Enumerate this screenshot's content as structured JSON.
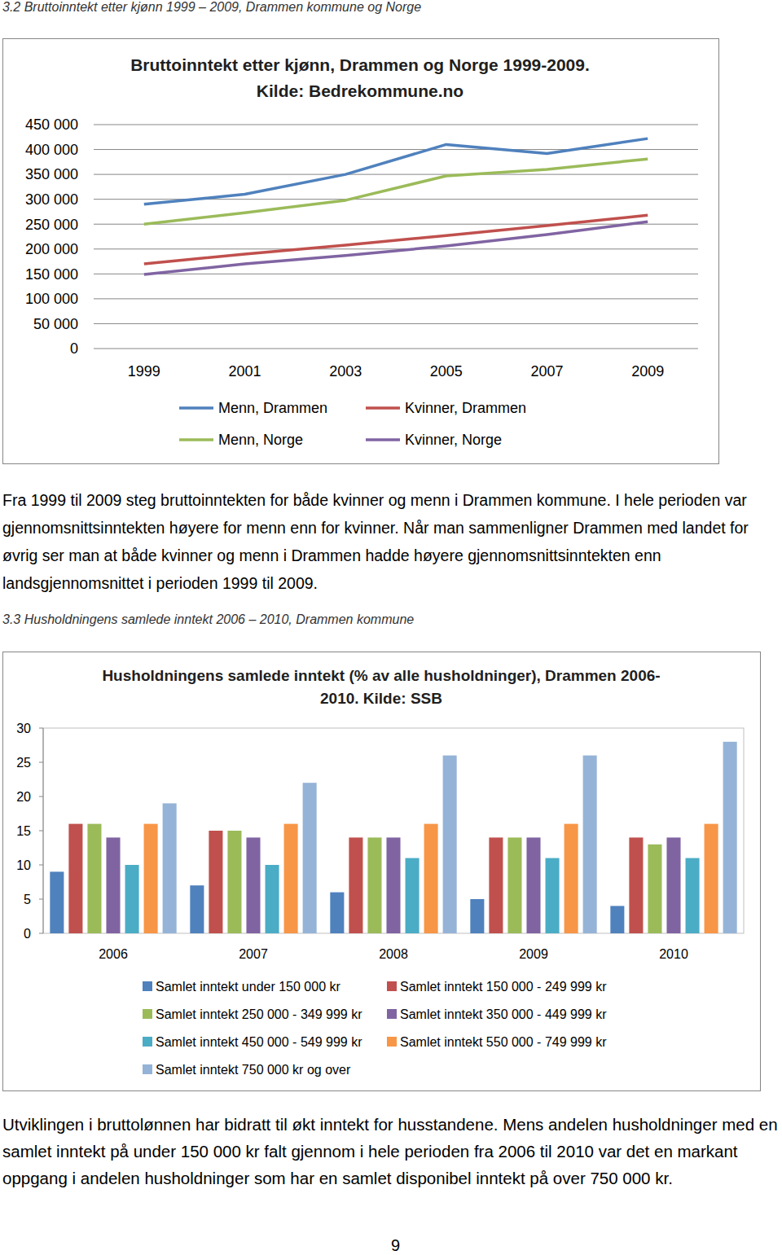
{
  "document": {
    "heading_1": "3.2 Bruttoinntekt etter kjønn 1999 – 2009, Drammen kommune og Norge",
    "paragraph_1": "Fra 1999 til 2009 steg bruttoinntekten for både kvinner og menn i Drammen kommune. I hele perioden var gjennomsnittsinntekten høyere for menn enn for kvinner. Når man sammenligner Drammen med landet for øvrig ser man at både kvinner og menn i Drammen hadde høyere gjennomsnittsinntekten enn landsgjennomsnittet i perioden 1999 til 2009.",
    "heading_2": "3.3 Husholdningens samlede inntekt 2006 – 2010, Drammen kommune",
    "paragraph_2": "Utviklingen i bruttolønnen har bidratt til økt inntekt for husstandene. Mens andelen husholdninger med en samlet inntekt på under 150 000 kr falt gjennom i hele perioden fra 2006 til 2010 var det en markant oppgang i andelen husholdninger som har en samlet disponibel inntekt på over 750 000 kr.",
    "page_number": "9"
  },
  "chart_data": [
    {
      "type": "line",
      "title": "Bruttoinntekt etter kjønn, Drammen og Norge 1999-2009.",
      "subtitle": "Kilde: Bedrekommune.no",
      "categories": [
        "1999",
        "2001",
        "2003",
        "2005",
        "2007",
        "2009"
      ],
      "series": [
        {
          "name": "Menn, Drammen",
          "color": "#4f81bd",
          "values": [
            290000,
            310000,
            350000,
            410000,
            392000,
            422000
          ]
        },
        {
          "name": "Kvinner, Drammen",
          "color": "#c0504d",
          "values": [
            170000,
            190000,
            208000,
            227000,
            247000,
            268000
          ]
        },
        {
          "name": "Menn, Norge",
          "color": "#9bbb59",
          "values": [
            250000,
            273000,
            298000,
            347000,
            360000,
            381000
          ]
        },
        {
          "name": "Kvinner, Norge",
          "color": "#8064a2",
          "values": [
            149000,
            170000,
            187000,
            206000,
            229000,
            255000
          ]
        }
      ],
      "ylim": [
        0,
        450000
      ],
      "yticks": [
        0,
        {
          "value": 50000,
          "label": "50 000"
        },
        {
          "value": 100000,
          "label": "100 000"
        },
        {
          "value": 150000,
          "label": "150 000"
        },
        {
          "value": 200000,
          "label": "200 000"
        },
        {
          "value": 250000,
          "label": "250 000"
        },
        {
          "value": 300000,
          "label": "300 000"
        },
        {
          "value": 350000,
          "label": "350 000"
        },
        {
          "value": 400000,
          "label": "400 000"
        },
        {
          "value": 450000,
          "label": "450 000"
        }
      ],
      "grid": true,
      "legend": "bottom"
    },
    {
      "type": "bar",
      "title": "Husholdningens samlede inntekt (% av alle husholdninger), Drammen 2006-",
      "subtitle": "2010. Kilde: SSB",
      "categories": [
        "2006",
        "2007",
        "2008",
        "2009",
        "2010"
      ],
      "series": [
        {
          "name": "Samlet inntekt under 150 000 kr",
          "color": "#4f81bd",
          "values": [
            9,
            7,
            6,
            5,
            4
          ]
        },
        {
          "name": "Samlet inntekt 150 000 - 249 999 kr",
          "color": "#c0504d",
          "values": [
            16,
            15,
            14,
            14,
            14
          ]
        },
        {
          "name": "Samlet inntekt 250 000 - 349 999 kr",
          "color": "#9bbb59",
          "values": [
            16,
            15,
            14,
            14,
            13
          ]
        },
        {
          "name": "Samlet inntekt 350 000 - 449 999 kr",
          "color": "#8064a2",
          "values": [
            14,
            14,
            14,
            14,
            14
          ]
        },
        {
          "name": "Samlet inntekt 450 000 - 549 999 kr",
          "color": "#4bacc6",
          "values": [
            10,
            10,
            11,
            11,
            11
          ]
        },
        {
          "name": "Samlet inntekt 550 000 - 749 999 kr",
          "color": "#f79646",
          "values": [
            16,
            16,
            16,
            16,
            16
          ]
        },
        {
          "name": "Samlet inntekt 750 000 kr og over",
          "color": "#95b3d7",
          "values": [
            19,
            22,
            26,
            26,
            28
          ]
        }
      ],
      "ylim": [
        0,
        30
      ],
      "yticks": [
        0,
        5,
        10,
        15,
        20,
        25,
        30
      ],
      "grid": false,
      "legend": "bottom"
    }
  ]
}
